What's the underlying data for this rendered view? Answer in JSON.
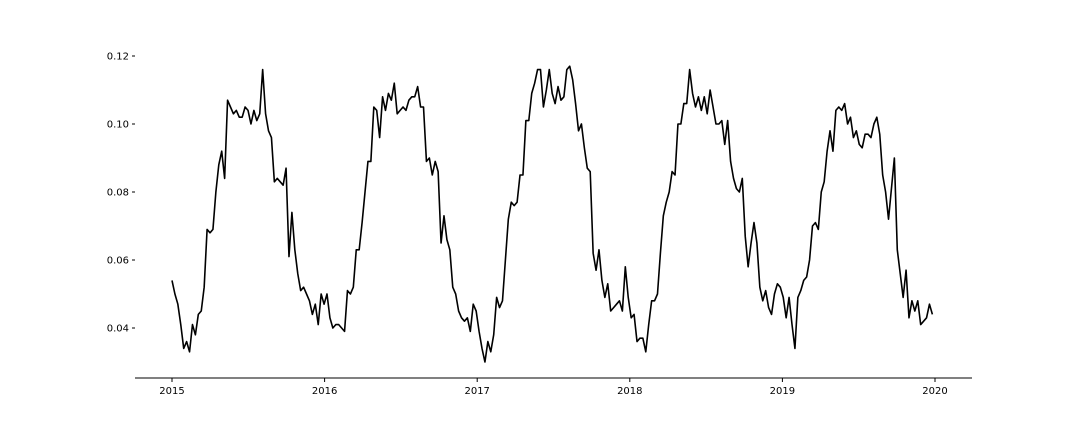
{
  "chart_data": {
    "type": "line",
    "title": "",
    "xlabel": "",
    "ylabel": "",
    "x_ticks": [
      "2015",
      "2016",
      "2017",
      "2018",
      "2019",
      "2020"
    ],
    "y_ticks": [
      "0.04",
      "0.06",
      "0.08",
      "0.10",
      "0.12"
    ],
    "xlim": [
      2014.75,
      2020.25
    ],
    "ylim": [
      0.025,
      0.123
    ],
    "grid": false,
    "line_color": "#000000",
    "series": [
      {
        "x_start": 2015.0,
        "x_step_weeks": 1,
        "values": [
          0.054,
          0.05,
          0.047,
          0.041,
          0.034,
          0.036,
          0.033,
          0.041,
          0.038,
          0.044,
          0.045,
          0.052,
          0.069,
          0.068,
          0.069,
          0.08,
          0.088,
          0.092,
          0.084,
          0.107,
          0.105,
          0.103,
          0.104,
          0.102,
          0.102,
          0.105,
          0.104,
          0.1,
          0.104,
          0.101,
          0.103,
          0.116,
          0.103,
          0.098,
          0.096,
          0.083,
          0.084,
          0.083,
          0.082,
          0.087,
          0.061,
          0.074,
          0.063,
          0.056,
          0.051,
          0.052,
          0.05,
          0.048,
          0.044,
          0.047,
          0.041,
          0.05,
          0.047,
          0.05,
          0.043,
          0.04,
          0.041,
          0.041,
          0.04,
          0.039,
          0.051,
          0.05,
          0.052,
          0.063,
          0.063,
          0.071,
          0.08,
          0.089,
          0.089,
          0.105,
          0.104,
          0.096,
          0.108,
          0.104,
          0.109,
          0.107,
          0.112,
          0.103,
          0.104,
          0.105,
          0.104,
          0.107,
          0.108,
          0.108,
          0.111,
          0.105,
          0.105,
          0.089,
          0.09,
          0.085,
          0.089,
          0.086,
          0.065,
          0.073,
          0.066,
          0.063,
          0.052,
          0.05,
          0.045,
          0.043,
          0.042,
          0.043,
          0.039,
          0.047,
          0.045,
          0.039,
          0.034,
          0.03,
          0.036,
          0.033,
          0.038,
          0.049,
          0.046,
          0.048,
          0.06,
          0.072,
          0.077,
          0.076,
          0.077,
          0.085,
          0.085,
          0.101,
          0.101,
          0.109,
          0.112,
          0.116,
          0.116,
          0.105,
          0.11,
          0.116,
          0.109,
          0.106,
          0.111,
          0.107,
          0.108,
          0.116,
          0.117,
          0.113,
          0.106,
          0.098,
          0.1,
          0.093,
          0.087,
          0.086,
          0.062,
          0.057,
          0.063,
          0.054,
          0.049,
          0.053,
          0.045,
          0.046,
          0.047,
          0.048,
          0.045,
          0.058,
          0.049,
          0.043,
          0.044,
          0.036,
          0.037,
          0.037,
          0.033,
          0.041,
          0.048,
          0.048,
          0.05,
          0.062,
          0.073,
          0.077,
          0.08,
          0.086,
          0.085,
          0.1,
          0.1,
          0.106,
          0.106,
          0.116,
          0.109,
          0.105,
          0.108,
          0.104,
          0.108,
          0.103,
          0.11,
          0.105,
          0.1,
          0.1,
          0.101,
          0.094,
          0.101,
          0.089,
          0.084,
          0.081,
          0.08,
          0.084,
          0.067,
          0.058,
          0.065,
          0.071,
          0.065,
          0.052,
          0.048,
          0.051,
          0.046,
          0.044,
          0.05,
          0.053,
          0.052,
          0.049,
          0.043,
          0.049,
          0.041,
          0.034,
          0.049,
          0.051,
          0.054,
          0.055,
          0.06,
          0.07,
          0.071,
          0.069,
          0.08,
          0.083,
          0.092,
          0.098,
          0.092,
          0.104,
          0.105,
          0.104,
          0.106,
          0.1,
          0.102,
          0.096,
          0.098,
          0.094,
          0.093,
          0.097,
          0.097,
          0.096,
          0.1,
          0.102,
          0.097,
          0.085,
          0.08,
          0.072,
          0.081,
          0.09,
          0.063,
          0.056,
          0.049,
          0.057,
          0.043,
          0.048,
          0.045,
          0.048,
          0.041,
          0.042,
          0.043,
          0.047,
          0.044
        ]
      }
    ]
  }
}
